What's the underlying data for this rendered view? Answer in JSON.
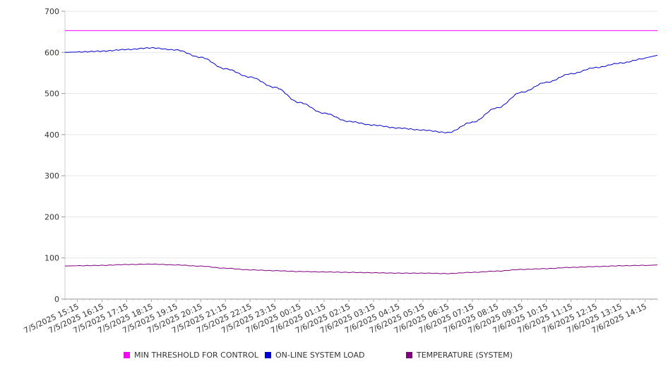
{
  "chart_data": {
    "type": "line",
    "title": "",
    "xlabel": "",
    "ylabel": "",
    "ylim": [
      0,
      700
    ],
    "yticks": [
      0,
      100,
      200,
      300,
      400,
      500,
      600,
      700
    ],
    "grid": true,
    "legend_position": "bottom",
    "x": [
      "7/5/2025 15:15",
      "7/5/2025 16:15",
      "7/5/2025 17:15",
      "7/5/2025 18:15",
      "7/5/2025 19:15",
      "7/5/2025 20:15",
      "7/5/2025 21:15",
      "7/5/2025 22:15",
      "7/5/2025 23:15",
      "7/6/2025 00:15",
      "7/6/2025 01:15",
      "7/6/2025 02:15",
      "7/6/2025 03:15",
      "7/6/2025 04:15",
      "7/6/2025 05:15",
      "7/6/2025 06:15",
      "7/6/2025 07:15",
      "7/6/2025 08:15",
      "7/6/2025 09:15",
      "7/6/2025 10:15",
      "7/6/2025 11:15",
      "7/6/2025 12:15",
      "7/6/2025 13:15",
      "7/6/2025 14:15"
    ],
    "series": [
      {
        "name": "MIN THRESHOLD FOR CONTROL",
        "color": "#ff00ff",
        "values": [
          653,
          653,
          653,
          653,
          653,
          653,
          653,
          653,
          653,
          653,
          653,
          653,
          653,
          653,
          653,
          653,
          653,
          653,
          653,
          653,
          653,
          653,
          653,
          653
        ]
      },
      {
        "name": "ON-LINE SYSTEM LOAD",
        "color": "#0000cc",
        "values": [
          601,
          603,
          607,
          611,
          606,
          588,
          560,
          540,
          515,
          478,
          452,
          432,
          423,
          416,
          411,
          405,
          430,
          465,
          503,
          527,
          548,
          563,
          574,
          585
        ]
      },
      {
        "name": "TEMPERATURE (SYSTEM)",
        "color": "#800080",
        "values": [
          81,
          82,
          84,
          85,
          83,
          80,
          75,
          71,
          69,
          67,
          66,
          65,
          64,
          63,
          63,
          62,
          65,
          68,
          72,
          74,
          77,
          79,
          81,
          82
        ]
      }
    ],
    "end_values": [
      653,
      593,
      83
    ]
  }
}
